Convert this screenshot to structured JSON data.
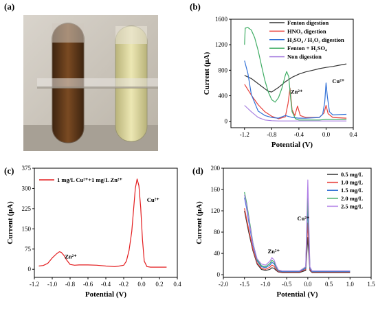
{
  "colors": {
    "fenton": "#333333",
    "hno3": "#e8413b",
    "h2so4_h2o2": "#2f6fd6",
    "fenton_h2so4": "#3fad64",
    "non": "#a77fe0",
    "c_curve": "#e31a1c",
    "d_05": "#333333",
    "d_10": "#e8413b",
    "d_15": "#2f6fd6",
    "d_20": "#3fad64",
    "d_25": "#b07fe6",
    "tube_left": "#5c3a1e",
    "tube_right": "#d9d49a"
  },
  "chart_data": [
    {
      "panel_label": "(a)",
      "type": "image",
      "description_items": [
        "brown-digest-tube",
        "yellow-digest-tube"
      ]
    },
    {
      "panel_label": "(b)",
      "type": "line",
      "xlabel": "Potential (V)",
      "ylabel": "Current (μA)",
      "xlim": [
        -1.4,
        0.4
      ],
      "ylim": [
        -100,
        1600
      ],
      "xticks": [
        -1.2,
        -0.8,
        -0.4,
        0.0,
        0.4
      ],
      "xtick_labels": [
        "-1.2",
        "-0.8",
        "-0.4",
        "0.0",
        "0.4"
      ],
      "yticks": [
        0,
        400,
        800,
        1200,
        1600
      ],
      "ytick_labels": [
        "0",
        "400",
        "800",
        "1200",
        "1600"
      ],
      "legend_position": "top-right",
      "annotations": [
        {
          "text": "Zn²⁺",
          "x": -0.52,
          "y": 430
        },
        {
          "text": "Cu²⁺",
          "x": 0.09,
          "y": 600
        }
      ],
      "series": [
        {
          "name": "Fenton digestion",
          "color_key": "fenton",
          "x": [
            -1.2,
            -1.1,
            -1.0,
            -0.9,
            -0.85,
            -0.8,
            -0.7,
            -0.6,
            -0.5,
            -0.4,
            -0.3,
            -0.2,
            -0.1,
            0.0,
            0.1,
            0.2,
            0.3
          ],
          "y": [
            720,
            670,
            590,
            510,
            470,
            460,
            530,
            620,
            690,
            740,
            775,
            800,
            825,
            845,
            860,
            880,
            900
          ]
        },
        {
          "name": "HNO₃ digestion",
          "color_key": "hno3",
          "x": [
            -1.2,
            -1.1,
            -1.0,
            -0.9,
            -0.8,
            -0.7,
            -0.6,
            -0.56,
            -0.53,
            -0.5,
            -0.46,
            -0.42,
            -0.38,
            -0.3,
            -0.1,
            -0.03,
            0.0,
            0.03,
            0.1,
            0.3
          ],
          "y": [
            580,
            410,
            260,
            150,
            80,
            40,
            70,
            280,
            520,
            180,
            90,
            240,
            90,
            60,
            60,
            130,
            250,
            120,
            60,
            50
          ]
        },
        {
          "name": "H₂SO₄ / H₂O₂ digestion",
          "color_key": "h2so4_h2o2",
          "x": [
            -1.2,
            -1.15,
            -1.1,
            -1.0,
            -0.9,
            -0.8,
            -0.7,
            -0.6,
            -0.5,
            -0.4,
            -0.3,
            -0.1,
            -0.05,
            -0.02,
            0.0,
            0.02,
            0.05,
            0.1,
            0.3
          ],
          "y": [
            950,
            750,
            420,
            160,
            90,
            60,
            50,
            90,
            60,
            50,
            50,
            60,
            110,
            300,
            600,
            380,
            150,
            100,
            110
          ]
        },
        {
          "name": "Fenton + H₂SO₄",
          "color_key": "fenton_h2so4",
          "x": [
            -1.2,
            -1.19,
            -1.15,
            -1.1,
            -1.05,
            -1.0,
            -0.95,
            -0.9,
            -0.85,
            -0.8,
            -0.75,
            -0.7,
            -0.65,
            -0.6,
            -0.58,
            -0.55,
            -0.52,
            -0.5,
            -0.45,
            -0.4,
            -0.3,
            -0.1,
            0.0,
            0.1,
            0.3
          ],
          "y": [
            1200,
            1460,
            1470,
            1430,
            1310,
            1110,
            870,
            640,
            460,
            340,
            300,
            370,
            520,
            720,
            780,
            700,
            350,
            150,
            40,
            20,
            20,
            20,
            30,
            30,
            30
          ]
        },
        {
          "name": "Non digestion",
          "color_key": "non",
          "x": [
            -1.2,
            -1.1,
            -1.0,
            -0.9,
            -0.8,
            -0.7,
            -0.6,
            -0.5,
            -0.4,
            -0.3,
            -0.2,
            0.0,
            0.2,
            0.3
          ],
          "y": [
            250,
            150,
            60,
            20,
            10,
            5,
            5,
            5,
            5,
            5,
            5,
            5,
            5,
            5
          ]
        }
      ]
    },
    {
      "panel_label": "(c)",
      "type": "line",
      "xlabel": "Potential (V)",
      "ylabel": "Current (μA)",
      "xlim": [
        -1.2,
        0.4
      ],
      "ylim": [
        -30,
        375
      ],
      "xticks": [
        -1.2,
        -1.0,
        -0.8,
        -0.6,
        -0.4,
        -0.2,
        0.0,
        0.2,
        0.4
      ],
      "xtick_labels": [
        "-1.2",
        "-1.0",
        "-0.8",
        "-0.6",
        "-0.4",
        "-0.2",
        "0.0",
        "0.2",
        "0.4"
      ],
      "yticks": [
        0,
        75,
        150,
        225,
        300,
        375
      ],
      "ytick_labels": [
        "0",
        "75",
        "150",
        "225",
        "300",
        "375"
      ],
      "legend_position": "top-left",
      "annotations": [
        {
          "text": "Zn²⁺",
          "x": -0.86,
          "y": 40
        },
        {
          "text": "Cu²⁺",
          "x": 0.06,
          "y": 250
        }
      ],
      "series": [
        {
          "name": "1 mg/L Cu²⁺+1 mg/L Zn²⁺",
          "color_key": "c_curve",
          "x": [
            -1.15,
            -1.1,
            -1.05,
            -1.0,
            -0.95,
            -0.92,
            -0.9,
            -0.87,
            -0.84,
            -0.8,
            -0.75,
            -0.7,
            -0.6,
            -0.5,
            -0.4,
            -0.3,
            -0.25,
            -0.2,
            -0.17,
            -0.14,
            -0.11,
            -0.09,
            -0.07,
            -0.05,
            -0.03,
            -0.01,
            0.01,
            0.03,
            0.06,
            0.1,
            0.15,
            0.2,
            0.28
          ],
          "y": [
            12,
            14,
            22,
            42,
            58,
            65,
            63,
            52,
            35,
            18,
            15,
            16,
            16,
            15,
            12,
            10,
            12,
            15,
            30,
            70,
            140,
            220,
            300,
            335,
            310,
            230,
            110,
            30,
            10,
            8,
            8,
            8,
            8
          ]
        }
      ]
    },
    {
      "panel_label": "(d)",
      "type": "line",
      "xlabel": "Potential (V)",
      "ylabel": "Current (μA)",
      "xlim": [
        -2.0,
        1.5
      ],
      "ylim": [
        -5,
        200
      ],
      "xticks": [
        -2.0,
        -1.5,
        -1.0,
        -0.5,
        0.0,
        0.5,
        1.0,
        1.5
      ],
      "xtick_labels": [
        "-2.0",
        "-1.5",
        "-1.0",
        "-0.5",
        "0.0",
        "0.5",
        "1.0",
        "1.5"
      ],
      "yticks": [
        0,
        40,
        80,
        120,
        160,
        200
      ],
      "ytick_labels": [
        "0",
        "40",
        "80",
        "120",
        "160",
        "200"
      ],
      "legend_position": "top-right",
      "annotations": [
        {
          "text": "Zn²⁺",
          "x": -0.95,
          "y": 40
        },
        {
          "text": "Cu²⁺",
          "x": -0.25,
          "y": 102
        }
      ],
      "series": [
        {
          "name": "0.5 mg/L",
          "color_key": "d_05",
          "x": [
            -1.5,
            -1.45,
            -1.4,
            -1.3,
            -1.2,
            -1.1,
            -1.0,
            -0.9,
            -0.85,
            -0.8,
            -0.75,
            -0.7,
            -0.6,
            -0.4,
            -0.2,
            -0.05,
            0.0,
            0.05,
            0.1,
            0.3,
            0.6,
            1.0
          ],
          "y": [
            120,
            100,
            80,
            45,
            20,
            10,
            8,
            10,
            13,
            12,
            8,
            5,
            4,
            4,
            4,
            8,
            70,
            8,
            4,
            4,
            4,
            4
          ]
        },
        {
          "name": "1.0 mg/L",
          "color_key": "d_10",
          "x": [
            -1.5,
            -1.45,
            -1.4,
            -1.3,
            -1.2,
            -1.1,
            -1.0,
            -0.9,
            -0.85,
            -0.8,
            -0.75,
            -0.7,
            -0.6,
            -0.4,
            -0.2,
            -0.05,
            0.0,
            0.05,
            0.1,
            0.3,
            0.6,
            1.0
          ],
          "y": [
            125,
            105,
            85,
            48,
            22,
            12,
            10,
            14,
            18,
            16,
            10,
            6,
            5,
            5,
            5,
            10,
            97,
            10,
            5,
            5,
            5,
            5
          ]
        },
        {
          "name": "1.5 mg/L",
          "color_key": "d_15",
          "x": [
            -1.5,
            -1.45,
            -1.4,
            -1.3,
            -1.2,
            -1.1,
            -1.0,
            -0.9,
            -0.85,
            -0.8,
            -0.75,
            -0.7,
            -0.6,
            -0.4,
            -0.2,
            -0.05,
            0.0,
            0.05,
            0.1,
            0.3,
            0.6,
            1.0
          ],
          "y": [
            145,
            125,
            100,
            55,
            26,
            15,
            13,
            18,
            23,
            21,
            13,
            7,
            6,
            6,
            6,
            12,
            127,
            12,
            6,
            6,
            6,
            6
          ]
        },
        {
          "name": "2.0 mg/L",
          "color_key": "d_20",
          "x": [
            -1.5,
            -1.45,
            -1.4,
            -1.3,
            -1.2,
            -1.1,
            -1.0,
            -0.9,
            -0.85,
            -0.8,
            -0.75,
            -0.7,
            -0.6,
            -0.4,
            -0.2,
            -0.05,
            0.0,
            0.05,
            0.1,
            0.3,
            0.6,
            1.0
          ],
          "y": [
            155,
            135,
            110,
            60,
            28,
            17,
            15,
            21,
            27,
            24,
            15,
            8,
            7,
            7,
            7,
            14,
            145,
            14,
            7,
            7,
            7,
            7
          ]
        },
        {
          "name": "2.5 mg/L",
          "color_key": "d_25",
          "x": [
            -1.5,
            -1.45,
            -1.4,
            -1.3,
            -1.2,
            -1.1,
            -1.0,
            -0.9,
            -0.85,
            -0.8,
            -0.75,
            -0.7,
            -0.6,
            -0.4,
            -0.2,
            -0.05,
            0.0,
            0.05,
            0.1,
            0.3,
            0.6,
            1.0
          ],
          "y": [
            150,
            130,
            105,
            58,
            30,
            20,
            18,
            25,
            32,
            28,
            17,
            9,
            7,
            7,
            7,
            15,
            178,
            15,
            7,
            7,
            7,
            7
          ]
        }
      ]
    }
  ]
}
